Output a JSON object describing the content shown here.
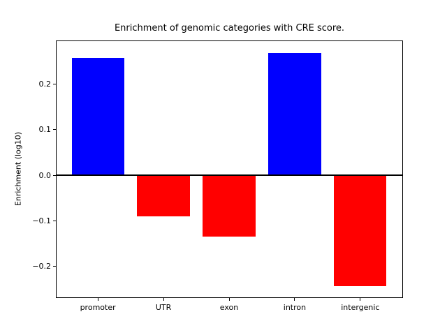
{
  "chart_data": {
    "type": "bar",
    "title": "Enrichment of genomic categories with CRE score.",
    "xlabel": "",
    "ylabel": "Enrichment (log10)",
    "categories": [
      "promoter",
      "UTR",
      "exon",
      "intron",
      "intergenic"
    ],
    "values": [
      0.256,
      -0.09,
      -0.134,
      0.268,
      -0.243
    ],
    "colors": [
      "#0000ff",
      "#ff0000",
      "#ff0000",
      "#0000ff",
      "#ff0000"
    ],
    "positive_color": "#0000ff",
    "negative_color": "#ff0000",
    "bar_width": 0.8,
    "xlim": [
      -0.64,
      4.64
    ],
    "ylim": [
      -0.268,
      0.294
    ],
    "yticks": [
      {
        "value": -0.2,
        "label": "−0.2"
      },
      {
        "value": -0.1,
        "label": "−0.1"
      },
      {
        "value": 0.0,
        "label": "0.0"
      },
      {
        "value": 0.1,
        "label": "0.1"
      },
      {
        "value": 0.2,
        "label": "0.2"
      }
    ],
    "zero_line": {
      "value": 0.0,
      "color": "#000000"
    },
    "grid": false,
    "legend_position": "none",
    "background_color": "#ffffff",
    "spine_color": "#000000"
  }
}
